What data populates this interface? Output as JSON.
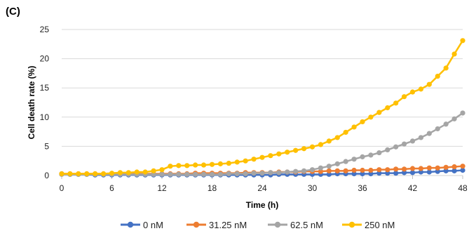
{
  "panel_label": "(C)",
  "chart_data": {
    "type": "line",
    "xlabel": "Time (h)",
    "ylabel": "Cell death rate (%)",
    "xlim": [
      0,
      48
    ],
    "ylim": [
      0,
      25
    ],
    "xticks": [
      0,
      6,
      12,
      18,
      24,
      30,
      36,
      42,
      48
    ],
    "yticks": [
      0,
      5,
      10,
      15,
      20,
      25
    ],
    "grid": "horizontal",
    "legend_position": "bottom",
    "x": [
      0,
      1,
      2,
      3,
      4,
      5,
      6,
      7,
      8,
      9,
      10,
      11,
      12,
      13,
      14,
      15,
      16,
      17,
      18,
      19,
      20,
      21,
      22,
      23,
      24,
      25,
      26,
      27,
      28,
      29,
      30,
      31,
      32,
      33,
      34,
      35,
      36,
      37,
      38,
      39,
      40,
      41,
      42,
      43,
      44,
      45,
      46,
      47,
      48
    ],
    "series": [
      {
        "name": "0 nM",
        "color": "#4472C4",
        "values": [
          0.3,
          0.2,
          0.2,
          0.2,
          0.1,
          0.1,
          0.1,
          0.1,
          0.1,
          0.1,
          0.1,
          0.1,
          0.1,
          0.1,
          0.1,
          0.1,
          0.1,
          0.1,
          0.1,
          0.1,
          0.1,
          0.1,
          0.1,
          0.1,
          0.1,
          0.1,
          0.2,
          0.2,
          0.2,
          0.2,
          0.2,
          0.2,
          0.2,
          0.3,
          0.3,
          0.3,
          0.3,
          0.3,
          0.4,
          0.4,
          0.4,
          0.5,
          0.5,
          0.6,
          0.6,
          0.7,
          0.8,
          0.8,
          0.9
        ]
      },
      {
        "name": "31.25 nM",
        "color": "#ED7D31",
        "values": [
          0.3,
          0.3,
          0.3,
          0.3,
          0.3,
          0.3,
          0.3,
          0.3,
          0.3,
          0.3,
          0.3,
          0.3,
          0.3,
          0.3,
          0.3,
          0.3,
          0.4,
          0.4,
          0.4,
          0.4,
          0.4,
          0.4,
          0.5,
          0.5,
          0.5,
          0.5,
          0.6,
          0.6,
          0.6,
          0.7,
          0.7,
          0.7,
          0.8,
          0.8,
          0.8,
          0.9,
          0.9,
          0.9,
          1.0,
          1.0,
          1.1,
          1.1,
          1.2,
          1.2,
          1.3,
          1.3,
          1.4,
          1.5,
          1.6
        ]
      },
      {
        "name": "62.5 nM",
        "color": "#A5A5A5",
        "values": [
          0.2,
          0.2,
          0.2,
          0.2,
          0.2,
          0.2,
          0.2,
          0.2,
          0.2,
          0.2,
          0.2,
          0.2,
          0.2,
          0.2,
          0.2,
          0.2,
          0.2,
          0.2,
          0.2,
          0.2,
          0.3,
          0.3,
          0.3,
          0.4,
          0.4,
          0.5,
          0.5,
          0.6,
          0.7,
          0.8,
          1.0,
          1.3,
          1.6,
          2.0,
          2.4,
          2.8,
          3.2,
          3.5,
          3.9,
          4.4,
          4.9,
          5.4,
          5.9,
          6.5,
          7.2,
          8.0,
          8.8,
          9.7,
          10.7
        ]
      },
      {
        "name": "250 nM",
        "color": "#FFC000",
        "values": [
          0.3,
          0.3,
          0.3,
          0.3,
          0.3,
          0.3,
          0.4,
          0.5,
          0.5,
          0.6,
          0.6,
          0.8,
          1.0,
          1.6,
          1.7,
          1.7,
          1.8,
          1.8,
          1.9,
          2.0,
          2.1,
          2.3,
          2.5,
          2.8,
          3.1,
          3.4,
          3.7,
          4.0,
          4.3,
          4.6,
          4.9,
          5.3,
          5.9,
          6.5,
          7.4,
          8.3,
          9.2,
          10.0,
          10.8,
          11.6,
          12.4,
          13.5,
          14.3,
          14.8,
          15.6,
          17.0,
          18.4,
          20.8,
          23.1
        ]
      }
    ]
  }
}
